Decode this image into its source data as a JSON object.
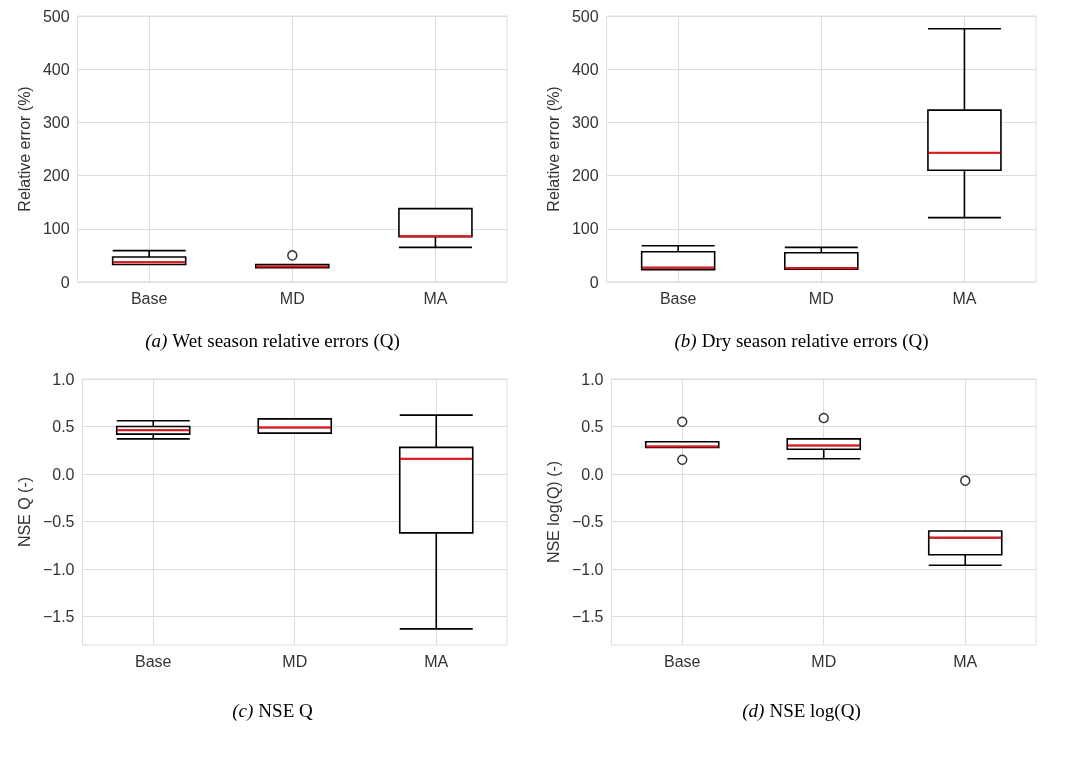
{
  "chart_data": [
    {
      "type": "box",
      "title": "(a) Wet season relative errors (Q)",
      "ylabel": "Relative error (%)",
      "categories": [
        "Base",
        "MD",
        "MA"
      ],
      "boxes": [
        {
          "low": 33,
          "q1": 33,
          "median": 37,
          "q3": 47,
          "high": 59
        },
        {
          "low": 27,
          "q1": 27,
          "median": 29,
          "q3": 33,
          "high": 33,
          "outliers": [
            50
          ]
        },
        {
          "low": 65,
          "q1": 85,
          "median": 86,
          "q3": 138,
          "high": 138
        }
      ],
      "ylim": [
        0,
        500
      ],
      "yticks": [
        0,
        100,
        200,
        300,
        400,
        500
      ],
      "grid": true
    },
    {
      "type": "box",
      "title": "(b) Dry season relative errors (Q)",
      "ylabel": "Relative error (%)",
      "categories": [
        "Base",
        "MD",
        "MA"
      ],
      "boxes": [
        {
          "low": 23,
          "q1": 23,
          "median": 27,
          "q3": 57,
          "high": 68
        },
        {
          "low": 24,
          "q1": 24,
          "median": 26,
          "q3": 55,
          "high": 65
        },
        {
          "low": 121,
          "q1": 210,
          "median": 243,
          "q3": 323,
          "high": 476
        }
      ],
      "ylim": [
        0,
        500
      ],
      "yticks": [
        0,
        100,
        200,
        300,
        400,
        500
      ],
      "grid": true
    },
    {
      "type": "box",
      "title": "(c) NSE Q",
      "ylabel": "NSE Q (-)",
      "categories": [
        "Base",
        "MD",
        "MA"
      ],
      "boxes": [
        {
          "low": 0.37,
          "q1": 0.42,
          "median": 0.46,
          "q3": 0.5,
          "high": 0.56
        },
        {
          "low": 0.43,
          "q1": 0.43,
          "median": 0.49,
          "q3": 0.58,
          "high": 0.58
        },
        {
          "low": -1.63,
          "q1": -0.62,
          "median": 0.16,
          "q3": 0.28,
          "high": 0.62
        }
      ],
      "ylim": [
        -1.8,
        1.0
      ],
      "yticks": [
        {
          "value": -1.5,
          "label": "−1.5"
        },
        {
          "value": -1.0,
          "label": "−1.0"
        },
        {
          "value": -0.5,
          "label": "−0.5"
        },
        {
          "value": 0,
          "label": "0.0"
        },
        {
          "value": 0.5,
          "label": "0.5"
        },
        {
          "value": 1.0,
          "label": "1.0"
        }
      ],
      "grid": true
    },
    {
      "type": "box",
      "title": "(d) NSE log(Q)",
      "ylabel": "NSE log(Q) (-)",
      "categories": [
        "Base",
        "MD",
        "MA"
      ],
      "boxes": [
        {
          "low": 0.28,
          "q1": 0.28,
          "median": 0.29,
          "q3": 0.34,
          "high": 0.34,
          "outliers": [
            0.55,
            0.15
          ]
        },
        {
          "low": 0.16,
          "q1": 0.26,
          "median": 0.3,
          "q3": 0.37,
          "high": 0.37,
          "outliers": [
            0.59
          ]
        },
        {
          "low": -0.96,
          "q1": -0.85,
          "median": -0.67,
          "q3": -0.6,
          "high": -0.6,
          "outliers": [
            -0.07
          ]
        }
      ],
      "ylim": [
        -1.8,
        1.0
      ],
      "yticks": [
        {
          "value": -1.5,
          "label": "−1.5"
        },
        {
          "value": -1.0,
          "label": "−1.0"
        },
        {
          "value": -0.5,
          "label": "−0.5"
        },
        {
          "value": 0,
          "label": "0.0"
        },
        {
          "value": 0.5,
          "label": "0.5"
        },
        {
          "value": 1.0,
          "label": "1.0"
        }
      ],
      "grid": true
    }
  ]
}
